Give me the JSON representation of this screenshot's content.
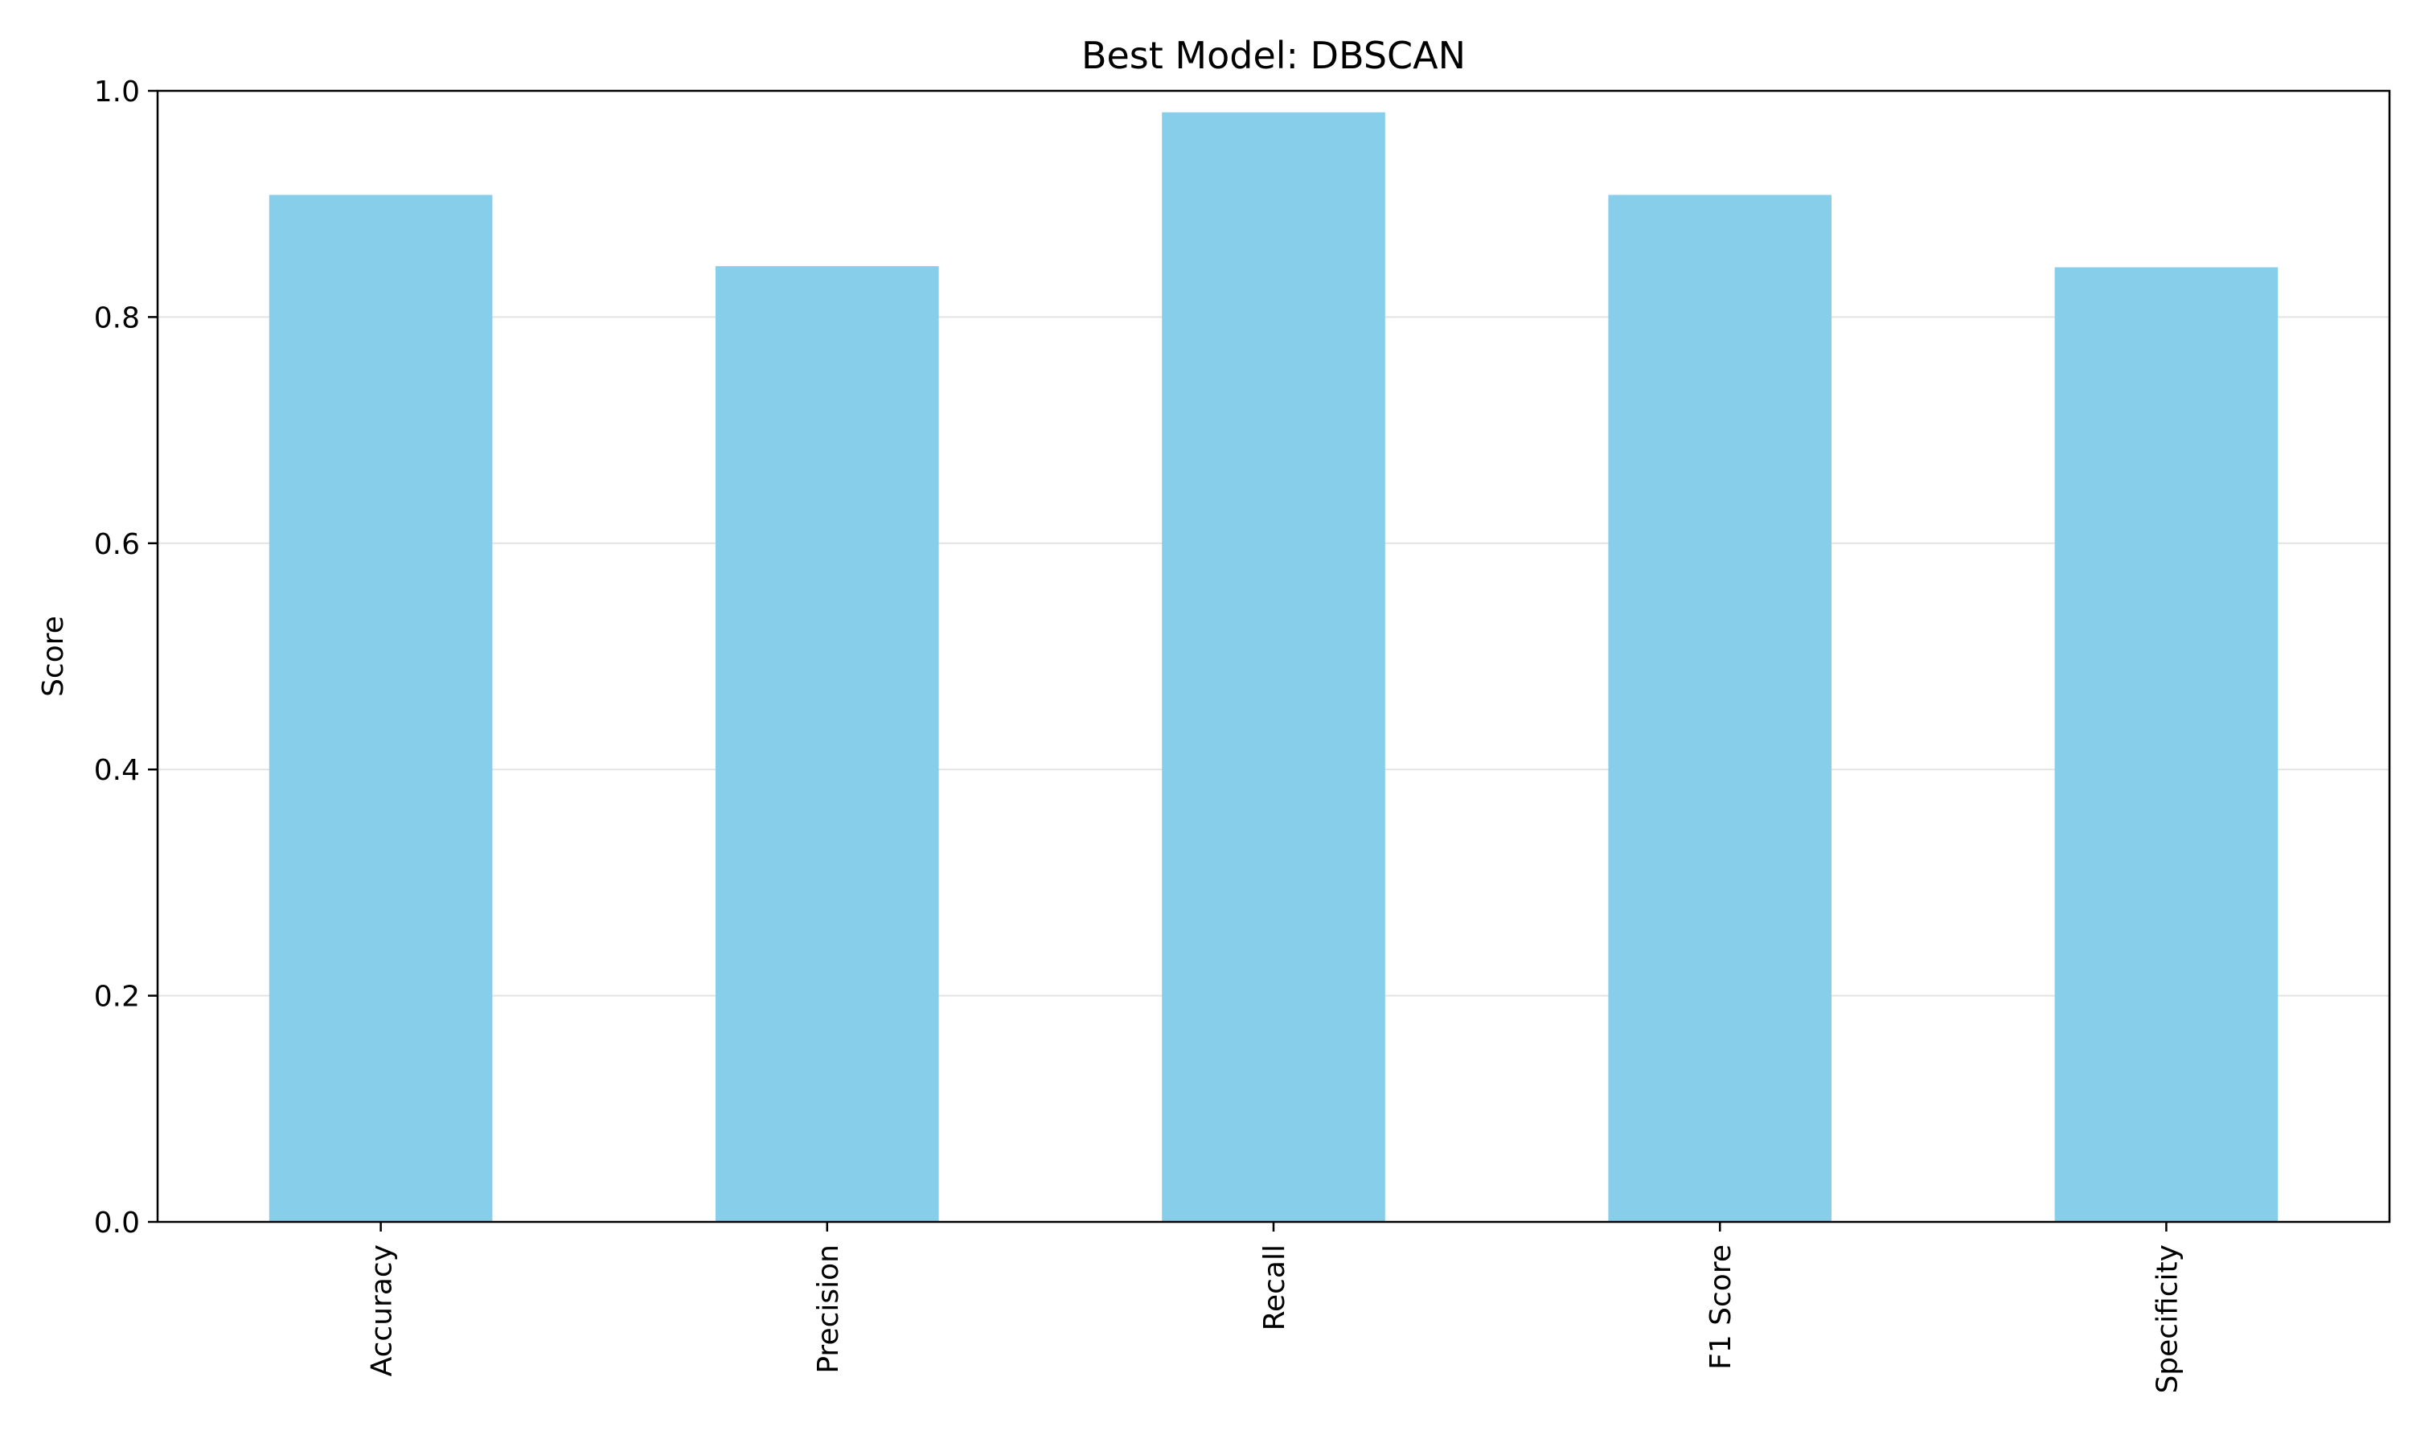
{
  "chart_data": {
    "type": "bar",
    "title": "Best Model: DBSCAN",
    "xlabel": "",
    "ylabel": "Score",
    "categories": [
      "Accuracy",
      "Precision",
      "Recall",
      "F1 Score",
      "Specificity"
    ],
    "values": [
      0.908,
      0.845,
      0.981,
      0.908,
      0.844
    ],
    "ylim": [
      0,
      1.0
    ],
    "yticks": [
      0.0,
      0.2,
      0.4,
      0.6,
      0.8,
      1.0
    ],
    "ytick_labels": [
      "0.0",
      "0.2",
      "0.4",
      "0.6",
      "0.8",
      "1.0"
    ],
    "grid": "y",
    "legend": "none",
    "bar_color": "#87CEEB",
    "grid_color": "#e3e3e3"
  }
}
